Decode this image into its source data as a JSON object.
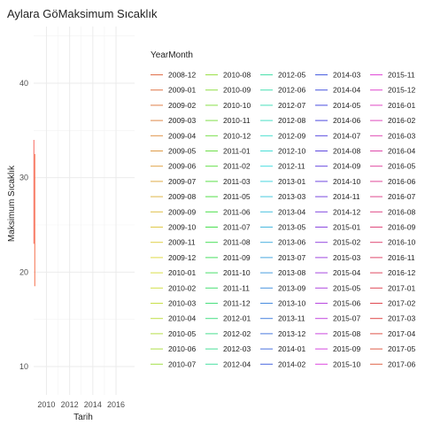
{
  "chart_data": {
    "type": "line",
    "title": "Aylara GöMaksimum Sıcaklık",
    "xlabel": "Tarih",
    "ylabel": "Maksimum Sıcaklık",
    "xlim": [
      2008.9,
      2017.6
    ],
    "ylim": [
      7,
      46
    ],
    "x_ticks": [
      2010,
      2012,
      2014,
      2016
    ],
    "y_ticks": [
      10,
      20,
      30,
      40
    ],
    "grid": true,
    "legend": {
      "title": "YearMonth",
      "position": "right",
      "columns": 5
    },
    "series": [
      {
        "name": "2008-12",
        "color": "#F8766D",
        "points": [
          [
            2008.92,
            34.0
          ],
          [
            2008.92,
            23.0
          ]
        ]
      },
      {
        "name": "2009-01",
        "color": "#F67C5B",
        "points": [
          [
            2009.0,
            32.5
          ],
          [
            2009.0,
            18.5
          ]
        ]
      }
    ],
    "legend_entries": [
      "2008-12",
      "2009-01",
      "2009-02",
      "2009-03",
      "2009-04",
      "2009-05",
      "2009-06",
      "2009-07",
      "2009-08",
      "2009-09",
      "2009-10",
      "2009-11",
      "2009-12",
      "2010-01",
      "2010-02",
      "2010-03",
      "2010-04",
      "2010-05",
      "2010-06",
      "2010-07",
      "2010-08",
      "2010-09",
      "2010-10",
      "2010-11",
      "2010-12",
      "2011-01",
      "2011-02",
      "2011-03",
      "2011-05",
      "2011-06",
      "2011-07",
      "2011-08",
      "2011-09",
      "2011-10",
      "2011-11",
      "2011-12",
      "2012-01",
      "2012-02",
      "2012-03",
      "2012-04",
      "2012-05",
      "2012-06",
      "2012-07",
      "2012-08",
      "2012-09",
      "2012-10",
      "2012-11",
      "2013-01",
      "2013-03",
      "2013-04",
      "2013-05",
      "2013-06",
      "2013-07",
      "2013-08",
      "2013-09",
      "2013-10",
      "2013-11",
      "2013-12",
      "2014-01",
      "2014-02",
      "2014-03",
      "2014-04",
      "2014-05",
      "2014-06",
      "2014-07",
      "2014-08",
      "2014-09",
      "2014-10",
      "2014-11",
      "2014-12",
      "2015-01",
      "2015-02",
      "2015-03",
      "2015-04",
      "2015-05",
      "2015-06",
      "2015-07",
      "2015-08",
      "2015-09",
      "2015-10",
      "2015-11",
      "2015-12",
      "2016-01",
      "2016-02",
      "2016-03",
      "2016-04",
      "2016-05",
      "2016-06",
      "2016-07",
      "2016-08",
      "2016-09",
      "2016-10",
      "2016-11",
      "2016-12",
      "2017-01",
      "2017-02",
      "2017-03",
      "2017-04",
      "2017-05",
      "2017-06"
    ]
  }
}
